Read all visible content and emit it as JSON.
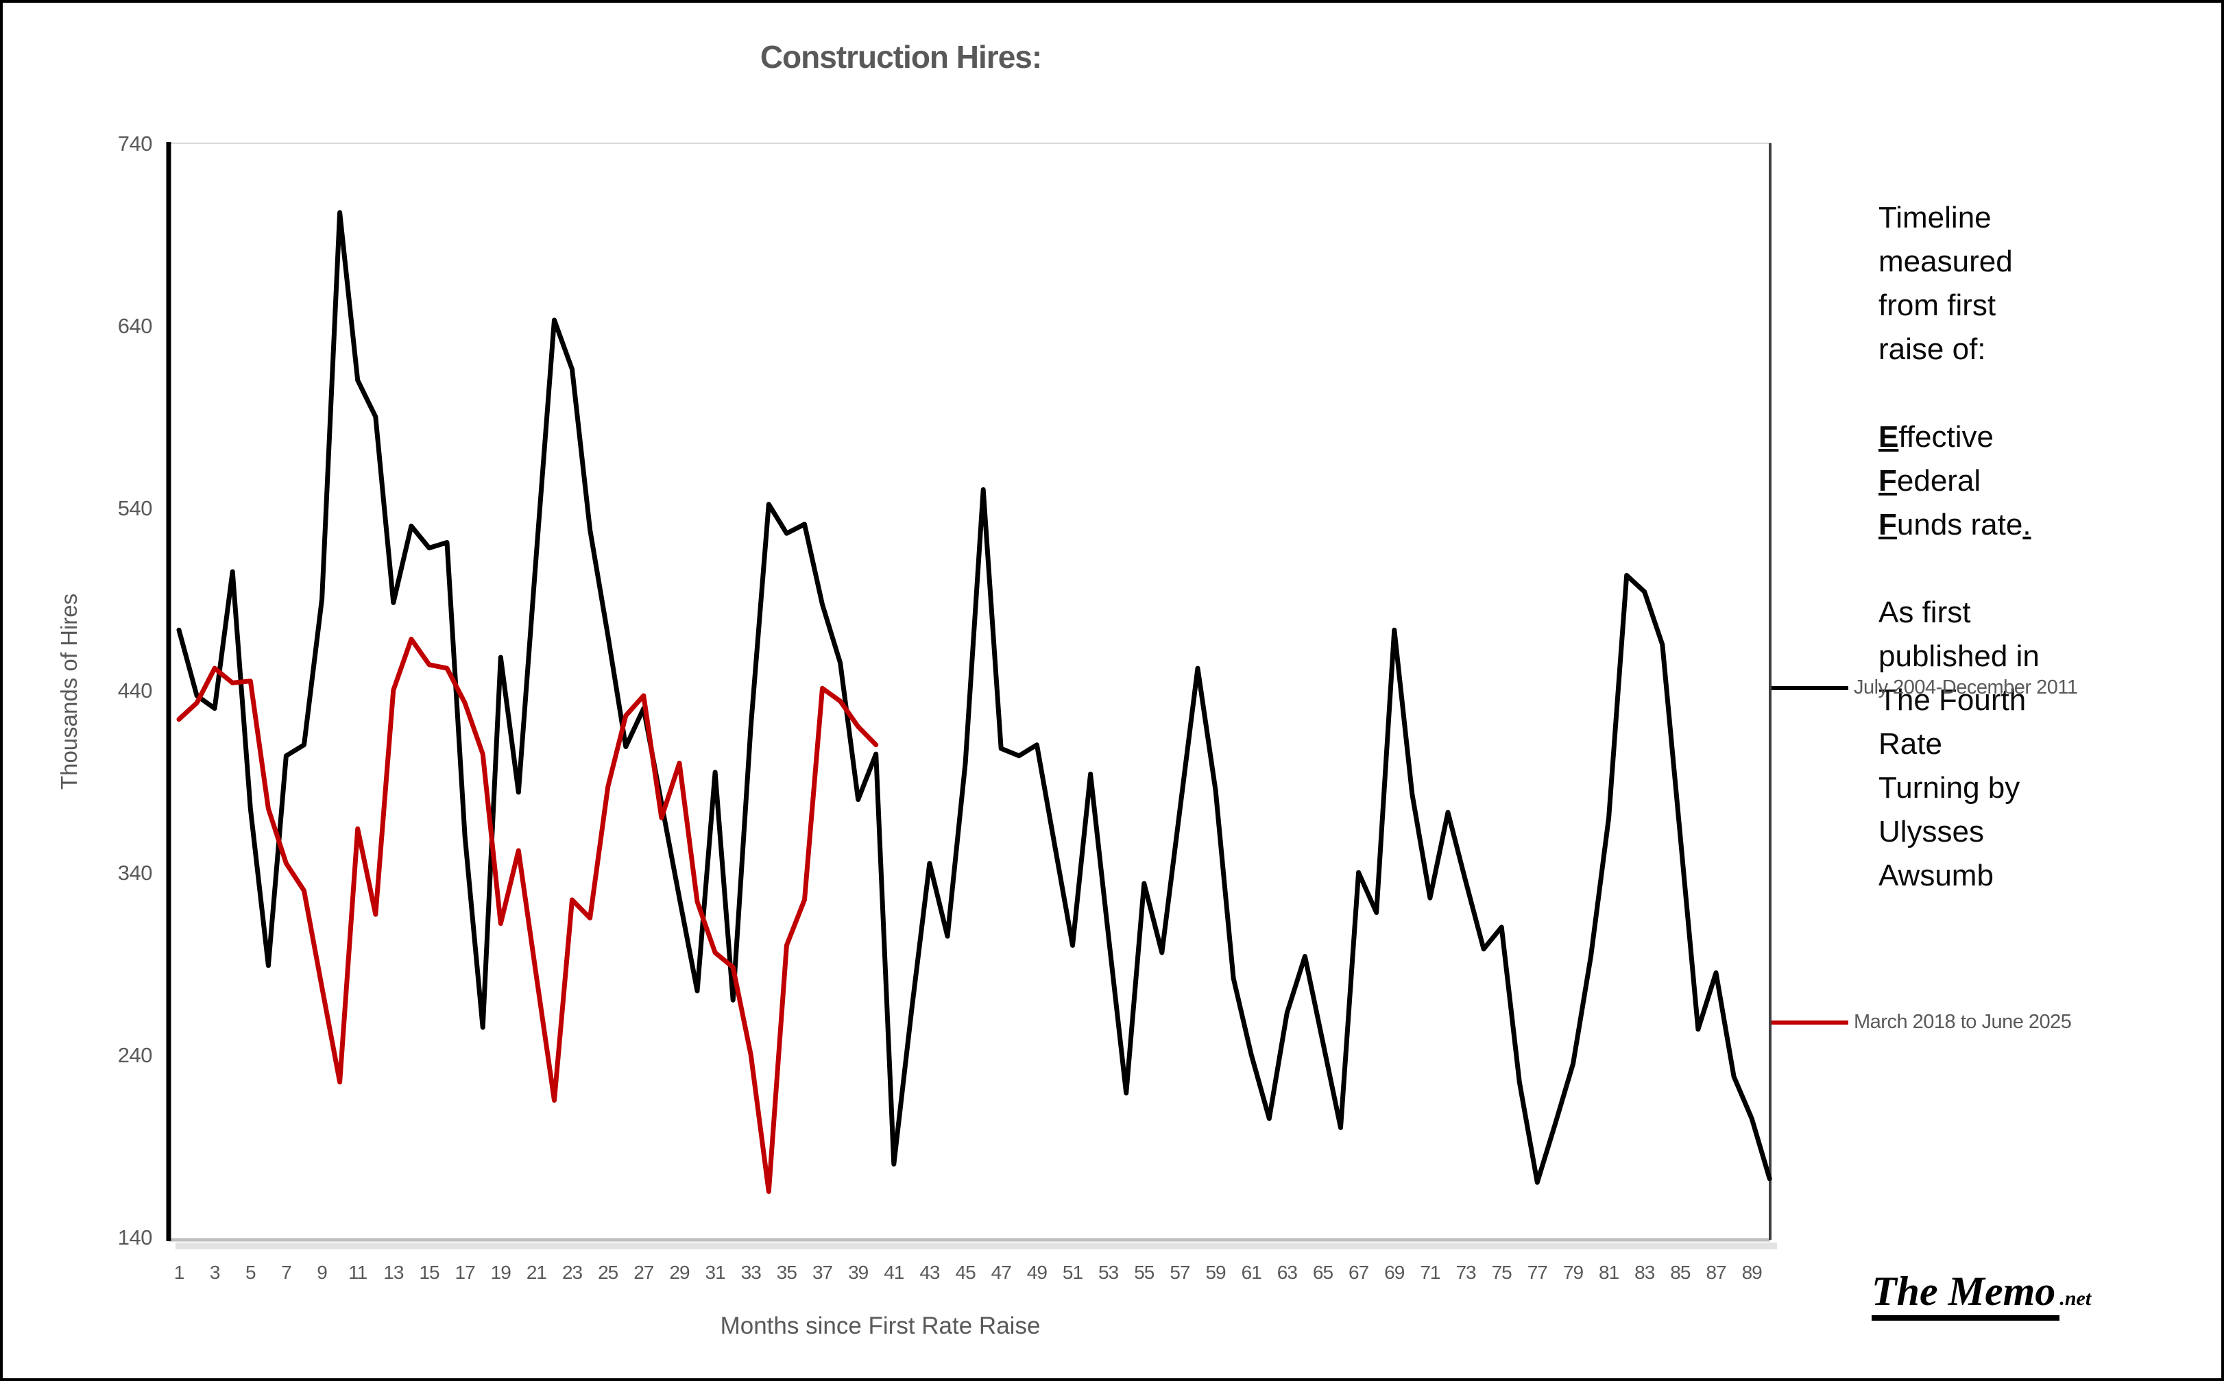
{
  "title": "Construction Hires:",
  "y_axis": {
    "label": "Thousands of Hires",
    "ticks": [
      740,
      640,
      540,
      440,
      340,
      240,
      140
    ],
    "min": 140,
    "max": 740
  },
  "x_axis": {
    "label": "Months since First Rate Raise",
    "tick_start": 1,
    "tick_end": 89,
    "tick_step": 2
  },
  "legend": [
    {
      "label": "July 2004-December 2011",
      "color": "#000000"
    },
    {
      "label": "March 2018 to June 2025",
      "color": "#c00000"
    }
  ],
  "side_note": {
    "para1": [
      "Timeline",
      "measured",
      "from first",
      "raise of:"
    ],
    "para2": [
      {
        "lead": "E",
        "rest": "ffective",
        "tail": ""
      },
      {
        "lead": "F",
        "rest": "ederal",
        "tail": ""
      },
      {
        "lead": "F",
        "rest": "unds rate",
        "tail": "."
      }
    ],
    "para3": [
      "As first",
      "published in",
      "The Fourth",
      "Rate",
      "Turning by",
      "Ulysses",
      "Awsumb"
    ]
  },
  "logo": {
    "main": "The Memo",
    "suffix": ".net"
  },
  "chart_data": {
    "type": "line",
    "x_start_month": 1,
    "xlabel": "Months since First Rate Raise",
    "ylabel": "Thousands of Hires",
    "ylim": [
      140,
      740
    ],
    "grid": false,
    "legend_position": "right",
    "series": [
      {
        "name": "July 2004-December 2011",
        "color": "#000000",
        "values": [
          473,
          437,
          430,
          505,
          375,
          289,
          404,
          410,
          490,
          702,
          610,
          590,
          488,
          530,
          518,
          521,
          360,
          255,
          458,
          384,
          515,
          643,
          616,
          528,
          470,
          409,
          430,
          378,
          326,
          275,
          395,
          270,
          420,
          542,
          526,
          531,
          487,
          455,
          380,
          405,
          180,
          265,
          345,
          305,
          400,
          550,
          408,
          404,
          410,
          355,
          300,
          394,
          306,
          219,
          334,
          296,
          374,
          452,
          385,
          282,
          240,
          205,
          263,
          294,
          247,
          200,
          340,
          318,
          473,
          383,
          326,
          373,
          335,
          298,
          310,
          225,
          170,
          202,
          235,
          294,
          370,
          503,
          494,
          465,
          360,
          254,
          285,
          228,
          205,
          172
        ]
      },
      {
        "name": "March 2018 to June 2025",
        "color": "#c00000",
        "values": [
          424,
          433,
          452,
          444,
          445,
          375,
          345,
          330,
          277,
          225,
          364,
          317,
          440,
          468,
          454,
          452,
          433,
          405,
          312,
          352,
          283,
          215,
          325,
          315,
          387,
          426,
          437,
          370,
          400,
          324,
          296,
          288,
          240,
          165,
          300,
          325,
          441,
          434,
          420,
          410
        ]
      }
    ]
  }
}
